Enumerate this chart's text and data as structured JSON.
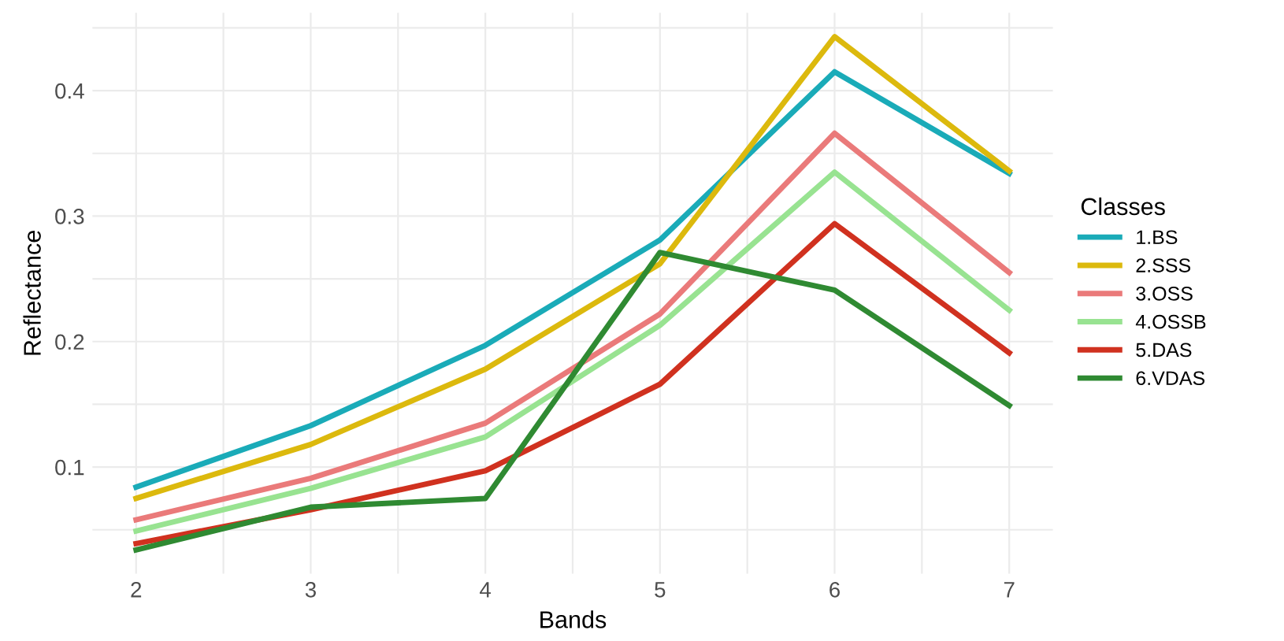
{
  "chart_data": {
    "type": "line",
    "xlabel": "Bands",
    "ylabel": "Reflectance",
    "legend_title": "Classes",
    "legend": "right",
    "grid": true,
    "line_style": "solid",
    "marker": "none",
    "x": [
      2,
      3,
      4,
      5,
      6,
      7
    ],
    "xlim": [
      1.75,
      7.25
    ],
    "xticks": [
      2,
      {
        "value": 2.5,
        "label": null
      },
      3,
      {
        "value": 3.5,
        "label": null
      },
      4,
      {
        "value": 4.5,
        "label": null
      },
      5,
      {
        "value": 5.5,
        "label": null
      },
      6,
      {
        "value": 6.5,
        "label": null
      },
      7
    ],
    "ylim": [
      0.015,
      0.462
    ],
    "yticks": [
      {
        "value": 0.05,
        "label": null
      },
      0.1,
      {
        "value": 0.15,
        "label": null
      },
      0.2,
      {
        "value": 0.25,
        "label": null
      },
      0.3,
      {
        "value": 0.35,
        "label": null
      },
      0.4,
      {
        "value": 0.45,
        "label": null
      }
    ],
    "series": [
      {
        "name": "1.BS",
        "color": "#1aabb8",
        "values": [
          0.084,
          0.133,
          0.197,
          0.281,
          0.415,
          0.334
        ]
      },
      {
        "name": "2.SSS",
        "color": "#dcb90d",
        "values": [
          0.075,
          0.118,
          0.178,
          0.262,
          0.443,
          0.336
        ]
      },
      {
        "name": "3.OSS",
        "color": "#ea7a7a",
        "values": [
          0.058,
          0.091,
          0.135,
          0.222,
          0.366,
          0.255
        ]
      },
      {
        "name": "4.OSSB",
        "color": "#98e391",
        "values": [
          0.049,
          0.083,
          0.124,
          0.213,
          0.335,
          0.225
        ]
      },
      {
        "name": "5.DAS",
        "color": "#d0311f",
        "values": [
          0.039,
          0.066,
          0.097,
          0.166,
          0.294,
          0.191
        ]
      },
      {
        "name": "6.VDAS",
        "color": "#2f8a32",
        "values": [
          0.034,
          0.068,
          0.075,
          0.271,
          0.241,
          0.149
        ]
      }
    ]
  }
}
